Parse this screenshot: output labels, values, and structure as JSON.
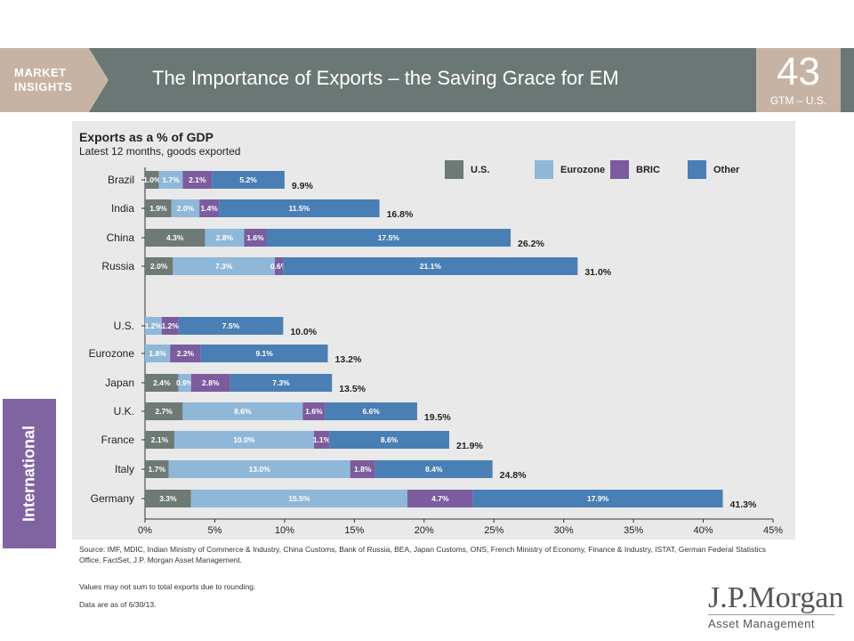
{
  "header": {
    "market_insights_line1": "MARKET",
    "market_insights_line2": "INSIGHTS",
    "title": "The Importance of Exports – the Saving Grace for EM",
    "page_number": "43",
    "page_code": "GTM – U.S."
  },
  "side_tab": {
    "label": "International"
  },
  "chart_data": {
    "type": "bar",
    "orientation": "horizontal",
    "stacked": true,
    "title": "Exports as a % of GDP",
    "subtitle": "Latest 12 months, goods exported",
    "categories": [
      "Brazil",
      "India",
      "China",
      "Russia",
      "U.S.",
      "Eurozone",
      "Japan",
      "U.K.",
      "France",
      "Italy",
      "Germany"
    ],
    "series": [
      {
        "name": "U.S.",
        "color": "#6e7a75",
        "values": [
          1.0,
          1.9,
          4.3,
          2.0,
          0,
          0,
          2.4,
          2.7,
          2.1,
          1.7,
          3.3
        ],
        "labels": [
          "1.0%",
          "1.9%",
          "4.3%",
          "2.0%",
          "",
          "",
          "2.4%",
          "2.7%",
          "2.1%",
          "1.7%",
          "3.3%"
        ]
      },
      {
        "name": "Eurozone",
        "color": "#8fb8d8",
        "values": [
          1.7,
          2.0,
          2.8,
          7.3,
          1.2,
          1.8,
          0.9,
          8.6,
          10.0,
          13.0,
          15.5
        ],
        "labels": [
          "1.7%",
          "2.0%",
          "2.8%",
          "7.3%",
          "1.2%",
          "1.8%",
          "0.9%",
          "8.6%",
          "10.0%",
          "13.0%",
          "15.5%"
        ]
      },
      {
        "name": "BRIC",
        "color": "#7c5c9e",
        "values": [
          2.1,
          1.4,
          1.6,
          0.6,
          1.2,
          2.2,
          2.8,
          1.6,
          1.1,
          1.8,
          4.7
        ],
        "labels": [
          "2.1%",
          "1.4%",
          "1.6%",
          "0.6%",
          "1.2%",
          "2.2%",
          "2.8%",
          "1.6%",
          "1.1%",
          "1.8%",
          "4.7%"
        ]
      },
      {
        "name": "Other",
        "color": "#4a7fb5",
        "values": [
          5.2,
          11.5,
          17.5,
          21.1,
          7.5,
          9.1,
          7.3,
          6.6,
          8.6,
          8.4,
          17.9
        ],
        "labels": [
          "5.2%",
          "11.5%",
          "17.5%",
          "21.1%",
          "7.5%",
          "9.1%",
          "7.3%",
          "6.6%",
          "8.6%",
          "8.4%",
          "17.9%"
        ]
      }
    ],
    "totals": [
      "9.9%",
      "16.8%",
      "26.2%",
      "31.0%",
      "10.0%",
      "13.2%",
      "13.5%",
      "19.5%",
      "21.9%",
      "24.8%",
      "41.3%"
    ],
    "xlim": [
      0,
      45
    ],
    "xticks": [
      "0%",
      "5%",
      "10%",
      "15%",
      "20%",
      "25%",
      "30%",
      "35%",
      "40%",
      "45%"
    ],
    "xlabel": "",
    "ylabel": "",
    "grid": false,
    "legend": "top-right"
  },
  "footnotes": {
    "source": "Source: IMF, MDIC, Indian Ministry of Commerce & Industry, China Customs, Bank of Russia, BEA, Japan Customs, ONS, French Ministry of Economy, Finance & Industry, ISTAT, German Federal Statistics Office, FactSet, J.P. Morgan Asset Management.",
    "rounding": "Values may not sum to total exports due to rounding.",
    "data_date": "Data are as of 6/30/13."
  },
  "logo": {
    "name": "J.P.Morgan",
    "sub": "Asset Management"
  }
}
